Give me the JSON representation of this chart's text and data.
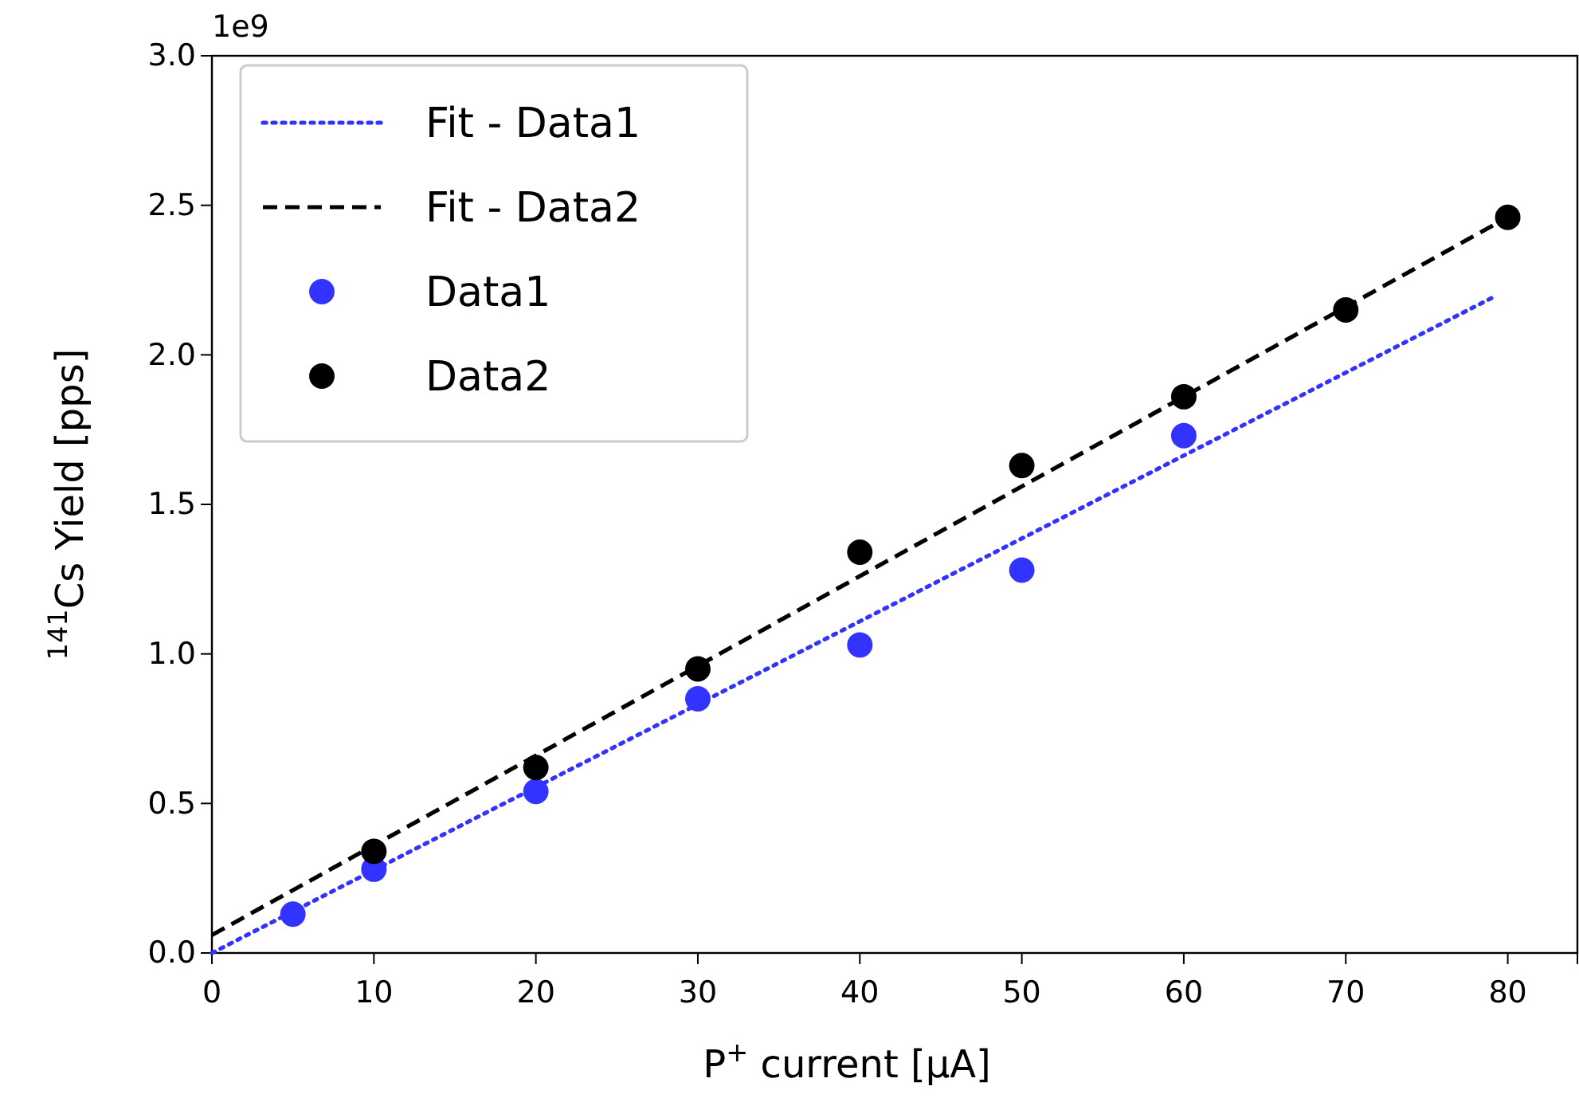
{
  "chart_data": {
    "type": "scatter",
    "xlabel": "P$^{+}$ current [μA]",
    "ylabel": "$^{141}$Cs Yield [pps]",
    "annotations": [
      "1e9"
    ],
    "xlim": [
      0,
      84.3
    ],
    "xticks": [
      0,
      10,
      20,
      30,
      40,
      50,
      60,
      70,
      80
    ],
    "ylim": [
      0,
      3.0
    ],
    "yticks": [
      {
        "value": 0,
        "label": "0.0"
      },
      {
        "value": 0.5,
        "label": "0.5"
      },
      {
        "value": 1,
        "label": "1.0"
      },
      {
        "value": 1.5,
        "label": "1.5"
      },
      {
        "value": 2,
        "label": "2.0"
      },
      {
        "value": 2.5,
        "label": "2.5"
      },
      {
        "value": 3,
        "label": "3.0"
      }
    ],
    "legend": "top left",
    "grid": false,
    "series": [
      {
        "name": "Fit - Data1",
        "type": "line",
        "line_style": "dotted",
        "color": "#3333ff",
        "x": [
          0,
          79
        ],
        "values": [
          0.0,
          2.19
        ]
      },
      {
        "name": "Fit - Data2",
        "type": "line",
        "line_style": "dashed",
        "color": "#000000",
        "x": [
          0,
          80
        ],
        "values": [
          0.06,
          2.46
        ]
      },
      {
        "name": "Data1",
        "marker": "circle",
        "color": "#3333ff",
        "x": [
          5,
          10,
          20,
          30,
          40,
          50,
          60
        ],
        "values": [
          0.13,
          0.28,
          0.54,
          0.85,
          1.03,
          1.28,
          1.73
        ]
      },
      {
        "name": "Data2",
        "marker": "circle",
        "color": "#000000",
        "x": [
          10,
          20,
          30,
          40,
          50,
          60,
          70,
          80
        ],
        "values": [
          0.34,
          0.62,
          0.95,
          1.34,
          1.63,
          1.86,
          2.15,
          2.46
        ]
      }
    ]
  }
}
